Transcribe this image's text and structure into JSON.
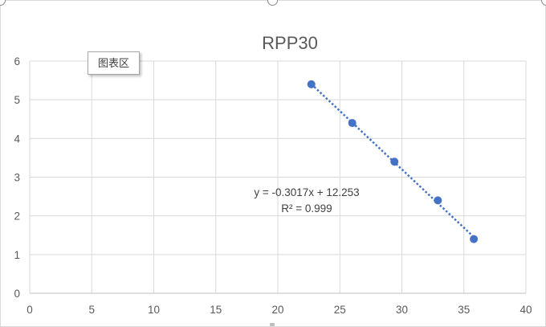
{
  "tooltip": {
    "label": "图表区"
  },
  "chart_data": {
    "type": "scatter",
    "title": "RPP30",
    "xlabel": "",
    "ylabel": "",
    "xlim": [
      0,
      40
    ],
    "ylim": [
      0,
      6
    ],
    "x_ticks": [
      0,
      5,
      10,
      15,
      20,
      25,
      30,
      35,
      40
    ],
    "y_ticks": [
      0,
      1,
      2,
      3,
      4,
      5,
      6
    ],
    "grid": true,
    "legend": "none",
    "series": [
      {
        "x": [
          22.7,
          26.0,
          29.4,
          32.9,
          35.8
        ],
        "y": [
          5.4,
          4.4,
          3.4,
          2.4,
          1.4
        ],
        "color": "#4472c4"
      }
    ],
    "trendline": {
      "type": "linear",
      "slope": -0.3017,
      "intercept": 12.253,
      "color": "#4472c4",
      "style": "dotted",
      "equation": "y = -0.3017x + 12.253",
      "r_squared": "R² = 0.999"
    }
  }
}
